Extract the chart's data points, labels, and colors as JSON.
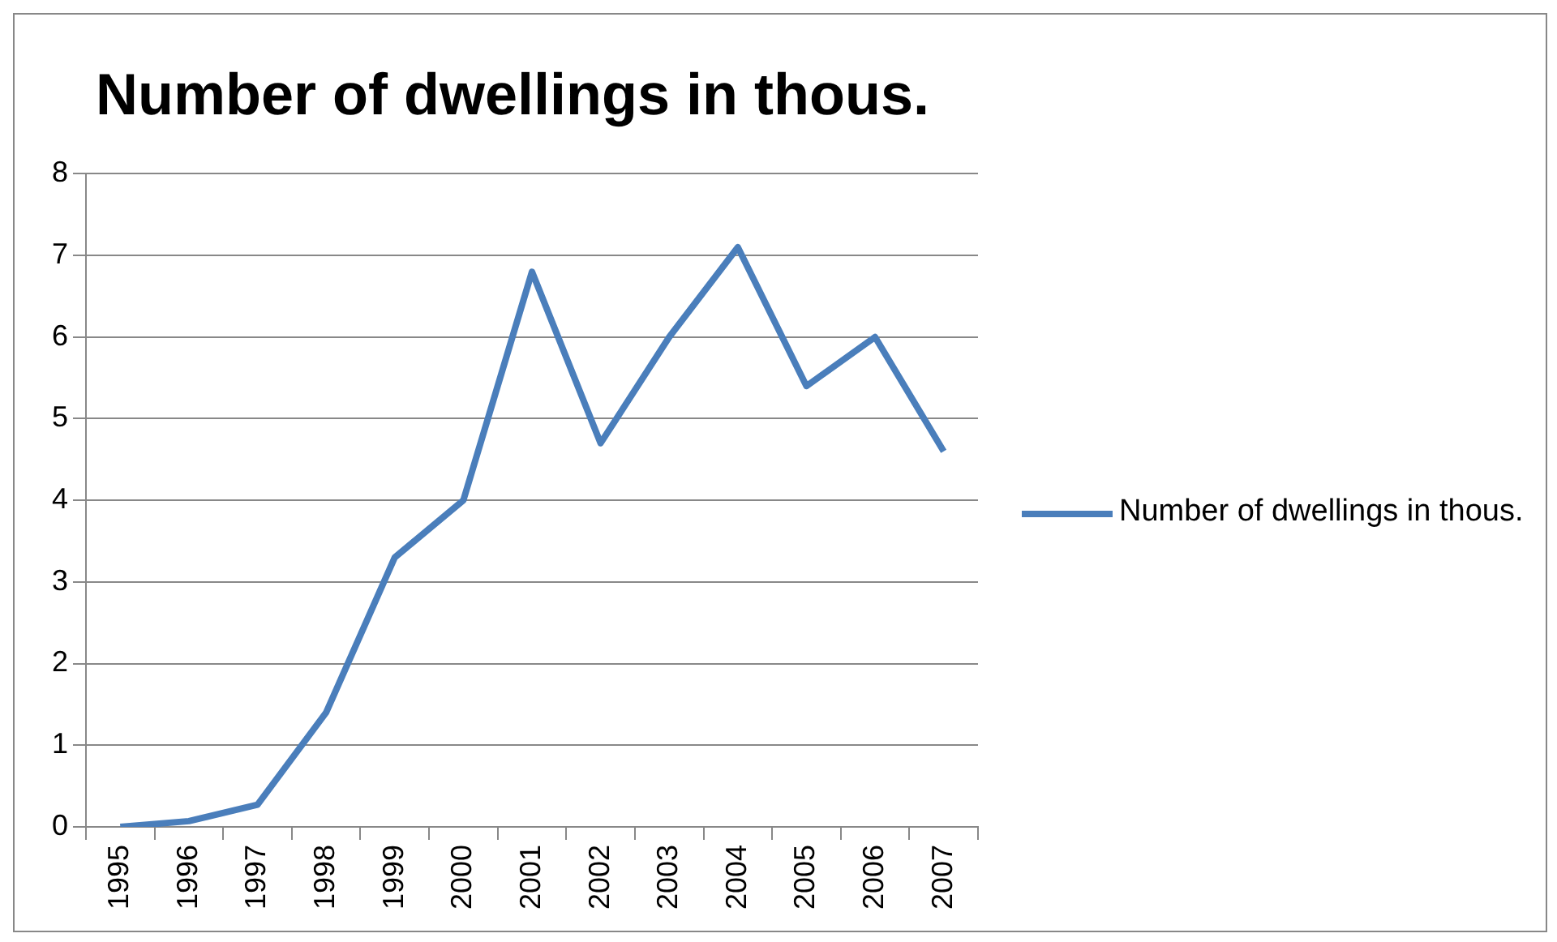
{
  "chart_data": {
    "type": "line",
    "title": "Number of dwellings in thous.",
    "categories": [
      "1995",
      "1996",
      "1997",
      "1998",
      "1999",
      "2000",
      "2001",
      "2002",
      "2003",
      "2004",
      "2005",
      "2006",
      "2007"
    ],
    "series": [
      {
        "name": "Number of dwellings in thous.",
        "color": "#4a7ebb",
        "values": [
          0,
          0.07,
          0.27,
          1.4,
          3.3,
          4.0,
          6.8,
          4.7,
          6.0,
          7.1,
          5.4,
          6.0,
          4.6
        ]
      }
    ],
    "ylim": [
      0,
      8
    ],
    "yticks": [
      0,
      1,
      2,
      3,
      4,
      5,
      6,
      7,
      8
    ],
    "grid": "y",
    "legend": "right",
    "marker": "none"
  }
}
